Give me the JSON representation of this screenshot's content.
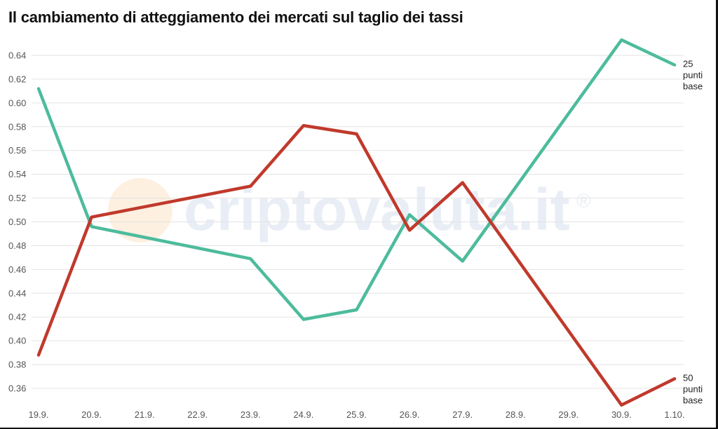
{
  "title": "Il cambiamento di atteggiamento dei mercati sul taglio dei tassi",
  "watermark": {
    "text": "criptovaluta.it",
    "mark": "®"
  },
  "chart_data": {
    "type": "line",
    "categories": [
      "19.9.",
      "20.9.",
      "21.9.",
      "22.9.",
      "23.9.",
      "24.9.",
      "25.9.",
      "26.9.",
      "27.9.",
      "28.9.",
      "29.9.",
      "30.9.",
      "1.10."
    ],
    "y_ticks": [
      "0.36",
      "0.38",
      "0.40",
      "0.42",
      "0.44",
      "0.46",
      "0.48",
      "0.50",
      "0.52",
      "0.54",
      "0.56",
      "0.58",
      "0.60",
      "0.62",
      "0.64"
    ],
    "ylim": [
      0.35,
      0.655
    ],
    "grid": true,
    "series": [
      {
        "name": "25 punti base",
        "label_lines": [
          "25",
          "punti",
          "base"
        ],
        "color": "#4dbb9c",
        "points": [
          {
            "i": 0,
            "y": 0.612
          },
          {
            "i": 1,
            "y": 0.496
          },
          {
            "i": 4,
            "y": 0.469
          },
          {
            "i": 5,
            "y": 0.418
          },
          {
            "i": 6,
            "y": 0.426
          },
          {
            "i": 7,
            "y": 0.506
          },
          {
            "i": 8,
            "y": 0.467
          },
          {
            "i": 11,
            "y": 0.653
          },
          {
            "i": 12,
            "y": 0.632
          }
        ]
      },
      {
        "name": "50 punti base",
        "label_lines": [
          "50",
          "punti",
          "base"
        ],
        "color": "#c0392b",
        "points": [
          {
            "i": 0,
            "y": 0.388
          },
          {
            "i": 1,
            "y": 0.504
          },
          {
            "i": 4,
            "y": 0.53
          },
          {
            "i": 5,
            "y": 0.581
          },
          {
            "i": 6,
            "y": 0.574
          },
          {
            "i": 7,
            "y": 0.493
          },
          {
            "i": 8,
            "y": 0.533
          },
          {
            "i": 11,
            "y": 0.346
          },
          {
            "i": 12,
            "y": 0.368
          }
        ]
      }
    ]
  }
}
